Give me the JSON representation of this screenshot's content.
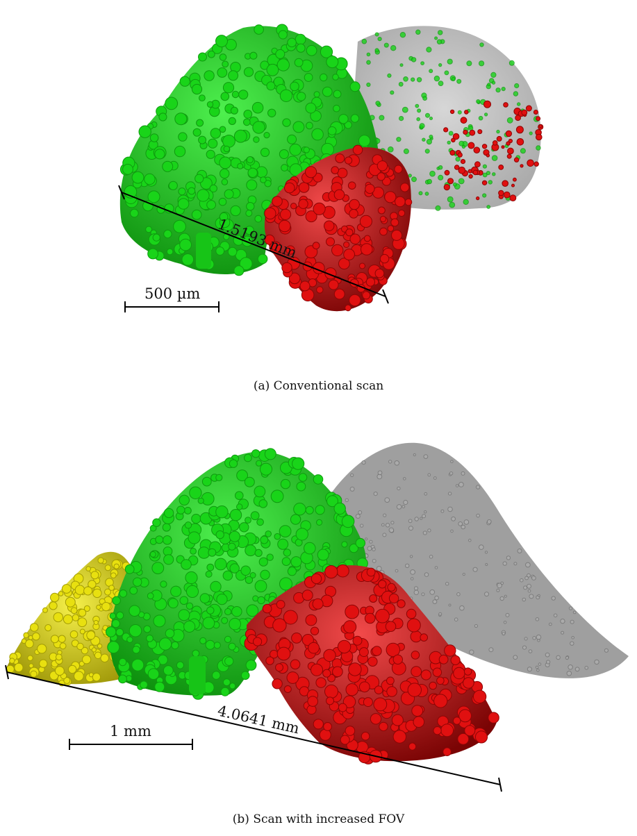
{
  "figure": {
    "panel_a": {
      "caption": "(a) Conventional scan",
      "measurement_label": "1.5193 mm",
      "scale_bar_label": "500 µm"
    },
    "panel_b": {
      "caption": "(b) Scan with increased FOV",
      "measurement_label": "4.0641 mm",
      "scale_bar_label": "1 mm"
    },
    "colors": {
      "green": "#19d419",
      "green_dark": "#0f9a0f",
      "red": "#e01010",
      "red_dark": "#8c0505",
      "yellow": "#e8e010",
      "yellow_dark": "#a39c05",
      "gray_volume": "#9a9a9a"
    }
  }
}
